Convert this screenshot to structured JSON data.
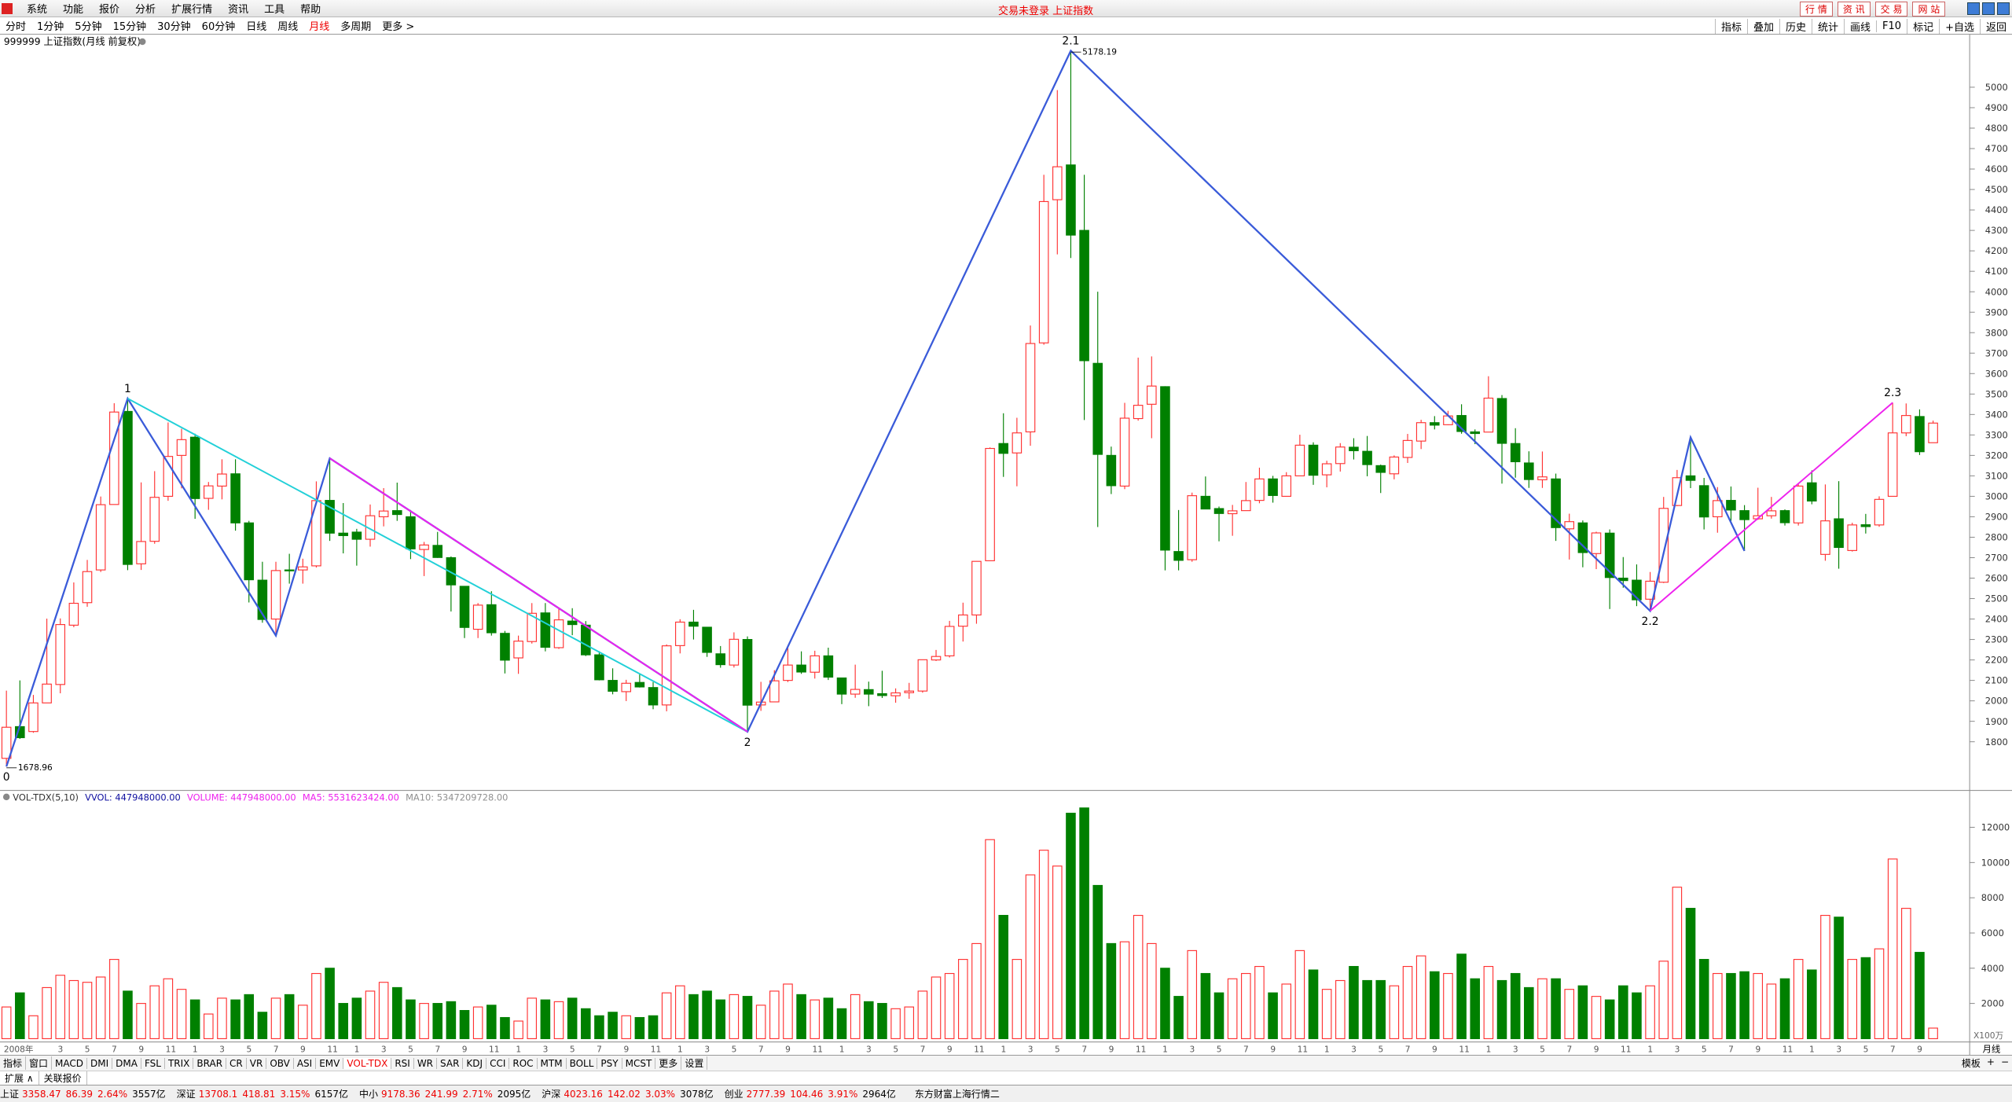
{
  "menu": {
    "items": [
      "系统",
      "功能",
      "报价",
      "分析",
      "扩展行情",
      "资讯",
      "工具",
      "帮助"
    ],
    "title": "交易未登录 上证指数",
    "buttons": [
      "行 情",
      "资 讯",
      "交 易",
      "网 站"
    ]
  },
  "period_bar": {
    "items": [
      "分时",
      "1分钟",
      "5分钟",
      "15分钟",
      "30分钟",
      "60分钟",
      "日线",
      "周线",
      "月线",
      "多周期",
      "更多 >"
    ],
    "active": 8,
    "tools": [
      "指标",
      "叠加",
      "历史",
      "统计",
      "画线",
      "F10",
      "标记",
      "+自选",
      "返回"
    ]
  },
  "chart_data": {
    "type": "candlestick",
    "title": "999999 上证指数(月线 前复权)",
    "period": "月线",
    "categories": [
      "2008年",
      null,
      null,
      null,
      "3",
      null,
      "5",
      null,
      "7",
      null,
      "9",
      null,
      "11",
      null,
      "1",
      null,
      "3",
      null,
      "5",
      null,
      "7",
      null,
      "9",
      null,
      "11",
      null,
      "1",
      null,
      "3",
      null,
      "5",
      null,
      "7",
      null,
      "9",
      null,
      "11",
      null,
      "1",
      null,
      "3",
      null,
      "5",
      null,
      "7",
      null,
      "9",
      null,
      "11",
      null,
      "1",
      null,
      "3",
      null,
      "5",
      null,
      "7",
      null,
      "9",
      null,
      "11",
      null,
      "1",
      null,
      "3",
      null,
      "5",
      null,
      "7",
      null,
      "9",
      null,
      "11",
      null,
      "1",
      null,
      "3",
      null,
      "5",
      null,
      "7",
      null,
      "9",
      null,
      "11",
      null,
      "1",
      null,
      "3",
      null,
      "5",
      null,
      "7",
      null,
      "9",
      null,
      "11",
      null,
      "1",
      null,
      "3",
      null,
      "5",
      null,
      "7",
      null,
      "9",
      null,
      "11",
      null,
      "1",
      null,
      "3",
      null,
      "5",
      null,
      "7",
      null,
      "9",
      null,
      "11",
      null,
      "1",
      null,
      "3",
      null,
      "5",
      null,
      "7",
      null,
      "9",
      null,
      "11",
      null,
      "1",
      null,
      "3",
      null,
      "5",
      null,
      "7",
      null,
      "9",
      null
    ],
    "ohlc": [
      [
        1719,
        2050,
        1678.96,
        1871
      ],
      [
        1874,
        2100,
        1814,
        1820
      ],
      [
        1850,
        2029,
        1844,
        1990
      ],
      [
        1990,
        2402,
        1990,
        2082
      ],
      [
        2080,
        2403,
        2037,
        2373
      ],
      [
        2370,
        2579,
        2360,
        2477
      ],
      [
        2480,
        2689,
        2460,
        2632
      ],
      [
        2640,
        2999,
        2630,
        2959
      ],
      [
        2960,
        3455,
        2960,
        3412
      ],
      [
        3415,
        3478,
        2639,
        2667
      ],
      [
        2670,
        3068,
        2640,
        2779
      ],
      [
        2780,
        3123,
        2768,
        2995
      ],
      [
        3000,
        3361,
        2978,
        3195
      ],
      [
        3200,
        3330,
        3039,
        3277
      ],
      [
        3289,
        3306,
        2890,
        2989
      ],
      [
        2990,
        3070,
        2934,
        3051
      ],
      [
        3050,
        3181,
        2985,
        3109
      ],
      [
        3110,
        3181,
        2832,
        2870
      ],
      [
        2870,
        2880,
        2481,
        2592
      ],
      [
        2590,
        2680,
        2382,
        2398
      ],
      [
        2400,
        2680,
        2319,
        2637
      ],
      [
        2640,
        2719,
        2573,
        2638
      ],
      [
        2640,
        2695,
        2573,
        2655
      ],
      [
        2660,
        3073,
        2652,
        2979
      ],
      [
        2980,
        3186,
        2782,
        2820
      ],
      [
        2820,
        2967,
        2721,
        2808
      ],
      [
        2825,
        2841,
        2661,
        2790
      ],
      [
        2790,
        2960,
        2754,
        2905
      ],
      [
        2900,
        3040,
        2853,
        2928
      ],
      [
        2930,
        3067,
        2880,
        2911
      ],
      [
        2900,
        2933,
        2693,
        2743
      ],
      [
        2740,
        2777,
        2610,
        2762
      ],
      [
        2760,
        2826,
        2699,
        2701
      ],
      [
        2700,
        2706,
        2437,
        2567
      ],
      [
        2560,
        2560,
        2307,
        2359
      ],
      [
        2350,
        2478,
        2307,
        2468
      ],
      [
        2470,
        2536,
        2319,
        2333
      ],
      [
        2330,
        2342,
        2134,
        2199
      ],
      [
        2210,
        2319,
        2132,
        2292
      ],
      [
        2290,
        2478,
        2280,
        2428
      ],
      [
        2430,
        2478,
        2242,
        2262
      ],
      [
        2260,
        2454,
        2254,
        2396
      ],
      [
        2390,
        2453,
        2321,
        2373
      ],
      [
        2370,
        2390,
        2219,
        2225
      ],
      [
        2225,
        2243,
        2100,
        2103
      ],
      [
        2100,
        2159,
        2032,
        2047
      ],
      [
        2045,
        2103,
        1999,
        2086
      ],
      [
        2090,
        2130,
        2065,
        2068
      ],
      [
        2065,
        2092,
        1959,
        1980
      ],
      [
        1980,
        2276,
        1949,
        2269
      ],
      [
        2270,
        2399,
        2232,
        2385
      ],
      [
        2385,
        2445,
        2300,
        2365
      ],
      [
        2360,
        2360,
        2215,
        2237
      ],
      [
        2230,
        2268,
        2162,
        2177
      ],
      [
        2175,
        2335,
        2163,
        2301
      ],
      [
        2300,
        2315,
        1849,
        1979
      ],
      [
        1980,
        2093,
        1951,
        1994
      ],
      [
        1995,
        2150,
        1993,
        2098
      ],
      [
        2100,
        2270,
        2092,
        2175
      ],
      [
        2175,
        2242,
        2132,
        2141
      ],
      [
        2140,
        2245,
        2109,
        2220
      ],
      [
        2220,
        2260,
        2102,
        2116
      ],
      [
        2112,
        2112,
        1984,
        2033
      ],
      [
        2033,
        2177,
        2015,
        2056
      ],
      [
        2055,
        2094,
        1974,
        2033
      ],
      [
        2035,
        2147,
        2014,
        2026
      ],
      [
        2025,
        2061,
        1991,
        2039
      ],
      [
        2040,
        2088,
        2010,
        2048
      ],
      [
        2048,
        2202,
        2040,
        2201
      ],
      [
        2200,
        2249,
        2195,
        2217
      ],
      [
        2220,
        2391,
        2212,
        2364
      ],
      [
        2365,
        2480,
        2290,
        2420
      ],
      [
        2420,
        2683,
        2377,
        2682
      ],
      [
        2685,
        3239,
        2684,
        3234
      ],
      [
        3258,
        3406,
        3095,
        3210
      ],
      [
        3212,
        3384,
        3049,
        3310
      ],
      [
        3315,
        3835,
        3247,
        3747
      ],
      [
        3750,
        4572,
        3741,
        4441
      ],
      [
        4450,
        4986,
        4183,
        4611
      ],
      [
        4620,
        5178.19,
        4165,
        4277
      ],
      [
        4300,
        4572,
        3373,
        3663
      ],
      [
        3650,
        4000,
        2850,
        3205
      ],
      [
        3200,
        3243,
        3011,
        3052
      ],
      [
        3050,
        3457,
        3035,
        3382
      ],
      [
        3380,
        3678,
        3370,
        3445
      ],
      [
        3450,
        3684,
        3284,
        3539
      ],
      [
        3536,
        3538,
        2638,
        2737
      ],
      [
        2730,
        2933,
        2638,
        2687
      ],
      [
        2690,
        3018,
        2680,
        3003
      ],
      [
        3000,
        3097,
        2938,
        2938
      ],
      [
        2940,
        2950,
        2780,
        2916
      ],
      [
        2915,
        2958,
        2807,
        2929
      ],
      [
        2930,
        3070,
        2930,
        2979
      ],
      [
        2980,
        3140,
        2966,
        3085
      ],
      [
        3085,
        3100,
        2969,
        3004
      ],
      [
        3000,
        3118,
        3000,
        3100
      ],
      [
        3100,
        3301,
        3099,
        3250
      ],
      [
        3250,
        3264,
        3056,
        3103
      ],
      [
        3105,
        3174,
        3044,
        3159
      ],
      [
        3160,
        3260,
        3121,
        3241
      ],
      [
        3240,
        3284,
        3180,
        3223
      ],
      [
        3220,
        3295,
        3098,
        3155
      ],
      [
        3150,
        3155,
        3016,
        3117
      ],
      [
        3110,
        3200,
        3083,
        3192
      ],
      [
        3190,
        3305,
        3163,
        3273
      ],
      [
        3270,
        3374,
        3231,
        3360
      ],
      [
        3360,
        3392,
        3327,
        3348
      ],
      [
        3350,
        3418,
        3348,
        3393
      ],
      [
        3395,
        3450,
        3306,
        3317
      ],
      [
        3315,
        3327,
        3255,
        3307
      ],
      [
        3314,
        3587,
        3314,
        3480
      ],
      [
        3478,
        3495,
        3062,
        3259
      ],
      [
        3258,
        3333,
        3091,
        3169
      ],
      [
        3163,
        3220,
        3041,
        3082
      ],
      [
        3081,
        3219,
        3041,
        3095
      ],
      [
        3085,
        3111,
        2782,
        2847
      ],
      [
        2841,
        2915,
        2691,
        2876
      ],
      [
        2870,
        2882,
        2653,
        2725
      ],
      [
        2720,
        2827,
        2644,
        2821
      ],
      [
        2820,
        2838,
        2449,
        2603
      ],
      [
        2600,
        2703,
        2553,
        2588
      ],
      [
        2590,
        2667,
        2463,
        2494
      ],
      [
        2497,
        2630,
        2440,
        2585
      ],
      [
        2580,
        2997,
        2576,
        2941
      ],
      [
        2955,
        3129,
        2952,
        3091
      ],
      [
        3100,
        3288,
        3040,
        3078
      ],
      [
        3052,
        3090,
        2838,
        2899
      ],
      [
        2900,
        3045,
        2822,
        2979
      ],
      [
        2980,
        3048,
        2879,
        2933
      ],
      [
        2930,
        2957,
        2733,
        2886
      ],
      [
        2890,
        3042,
        2885,
        2905
      ],
      [
        2905,
        2997,
        2891,
        2929
      ],
      [
        2930,
        2936,
        2857,
        2871
      ],
      [
        2870,
        3064,
        2857,
        3050
      ],
      [
        3066,
        3127,
        2961,
        2977
      ],
      [
        2716,
        3058,
        2685,
        2880
      ],
      [
        2890,
        3074,
        2646,
        2750
      ],
      [
        2735,
        2871,
        2730,
        2860
      ],
      [
        2861,
        2914,
        2818,
        2852
      ],
      [
        2860,
        3000,
        2851,
        2985
      ],
      [
        3000,
        3458,
        3000,
        3310
      ],
      [
        3310,
        3454,
        3294,
        3395
      ],
      [
        3390,
        3425,
        3202,
        3218
      ],
      [
        3262,
        3370,
        3262,
        3358
      ]
    ],
    "up_color": "#ff3232",
    "down_color": "#008000",
    "ylim": [
      1587,
      5251
    ],
    "yticks": [
      1800,
      1900,
      2000,
      2100,
      2200,
      2300,
      2400,
      2500,
      2600,
      2700,
      2800,
      2900,
      3000,
      3100,
      3200,
      3300,
      3400,
      3500,
      3600,
      3700,
      3800,
      3900,
      4000,
      4100,
      4200,
      4300,
      4400,
      4500,
      4600,
      4700,
      4800,
      4900,
      5000
    ],
    "waves": {
      "points": [
        {
          "label": "0",
          "candle": 0,
          "value": 1678.96
        },
        {
          "label": "1",
          "candle": 9,
          "value": 3478
        },
        {
          "candle": 20,
          "value": 2319
        },
        {
          "candle": 24,
          "value": 3186
        },
        {
          "label": "2",
          "candle": 55,
          "value": 1849
        },
        {
          "label": "2.1",
          "candle": 79,
          "value": 5178.19
        },
        {
          "label": "2.2",
          "candle": 122,
          "value": 2440
        },
        {
          "candle": 125,
          "value": 3288
        },
        {
          "candle": 129,
          "value": 2733
        },
        {
          "label": "2.3",
          "candle": 140,
          "value": 3458
        }
      ],
      "lines": [
        {
          "points": [
            0,
            1,
            2,
            3,
            4,
            5,
            6,
            7,
            8
          ],
          "color": "#3a5bd9"
        },
        {
          "points": [
            1,
            4
          ],
          "color": "#22d0d8"
        },
        {
          "points": [
            3,
            4
          ],
          "color": "#ee22ee"
        },
        {
          "points": [
            6,
            9
          ],
          "color": "#ee22ee"
        }
      ]
    },
    "price_labels": [
      {
        "candle": 0,
        "value": 1678.96
      },
      {
        "candle": 79,
        "value": 5178.19
      }
    ],
    "volume": {
      "name": "VOL-TDX(5,10)",
      "legend": [
        {
          "text": "VVOL: 447948000.00",
          "color": "#1010a0"
        },
        {
          "text": "VOLUME: 447948000.00",
          "color": "#ee22ee"
        },
        {
          "text": "MA5: 5531623424.00",
          "color": "#ee22ee"
        },
        {
          "text": "MA10: 5347209728.00",
          "color": "#909090"
        }
      ],
      "unit": "X100万",
      "values": [
        1800,
        2600,
        1300,
        2900,
        3600,
        3300,
        3200,
        3500,
        4500,
        2700,
        2000,
        3000,
        3400,
        2800,
        2200,
        1400,
        2300,
        2200,
        2500,
        1500,
        2300,
        2500,
        1900,
        3700,
        4000,
        2000,
        2300,
        2700,
        3200,
        2900,
        2200,
        2000,
        2000,
        2100,
        1600,
        1800,
        1900,
        1200,
        1000,
        2300,
        2200,
        2100,
        2300,
        1700,
        1300,
        1500,
        1300,
        1200,
        1300,
        2600,
        3000,
        2500,
        2700,
        2200,
        2500,
        2400,
        1900,
        2700,
        3100,
        2500,
        2200,
        2300,
        1700,
        2500,
        2100,
        2000,
        1700,
        1800,
        2700,
        3500,
        3700,
        4500,
        5400,
        11300,
        7000,
        4500,
        9300,
        10700,
        9800,
        12800,
        13100,
        8700,
        5400,
        5500,
        7000,
        5400,
        4000,
        2400,
        5000,
        3700,
        2600,
        3400,
        3700,
        4100,
        2600,
        3100,
        5000,
        3900,
        2800,
        3300,
        4100,
        3300,
        3300,
        3000,
        4100,
        4700,
        3800,
        3700,
        4800,
        3400,
        4100,
        3300,
        3700,
        2900,
        3400,
        3400,
        2800,
        3000,
        2400,
        2200,
        3000,
        2600,
        3000,
        4400,
        8600,
        7400,
        4500,
        3700,
        3700,
        3800,
        3700,
        3100,
        3400,
        4500,
        3900,
        7000,
        6900,
        4500,
        4600,
        5100,
        10200,
        7400,
        4900,
        600
      ],
      "ylim": [
        0,
        13800
      ],
      "yticks": [
        2000,
        4000,
        6000,
        8000,
        10000,
        12000
      ]
    }
  },
  "indicator_tabs": {
    "items": [
      "指标",
      "窗口",
      "MACD",
      "DMI",
      "DMA",
      "FSL",
      "TRIX",
      "BRAR",
      "CR",
      "VR",
      "OBV",
      "ASI",
      "EMV",
      "VOL-TDX",
      "RSI",
      "WR",
      "SAR",
      "KDJ",
      "CCI",
      "ROC",
      "MTM",
      "BOLL",
      "PSY",
      "MCST",
      "更多",
      "设置"
    ],
    "active": 13,
    "right": [
      "模板",
      "+",
      "−"
    ]
  },
  "sub_tabs": [
    "扩展 ∧",
    "关联报价"
  ],
  "status_bar": {
    "groups": [
      {
        "name": "上证",
        "values": [
          "3358.47",
          "86.39",
          "2.64%"
        ],
        "amount": "3557亿"
      },
      {
        "name": "深证",
        "values": [
          "13708.1",
          "418.81",
          "3.15%"
        ],
        "amount": "6157亿"
      },
      {
        "name": "中小",
        "values": [
          "9178.36",
          "241.99",
          "2.71%"
        ],
        "amount": "2095亿"
      },
      {
        "name": "沪深",
        "values": [
          "4023.16",
          "142.02",
          "3.03%"
        ],
        "amount": "3078亿"
      },
      {
        "name": "创业",
        "values": [
          "2777.39",
          "104.46",
          "3.91%"
        ],
        "amount": "2964亿"
      }
    ],
    "source": "东方财富上海行情二"
  }
}
